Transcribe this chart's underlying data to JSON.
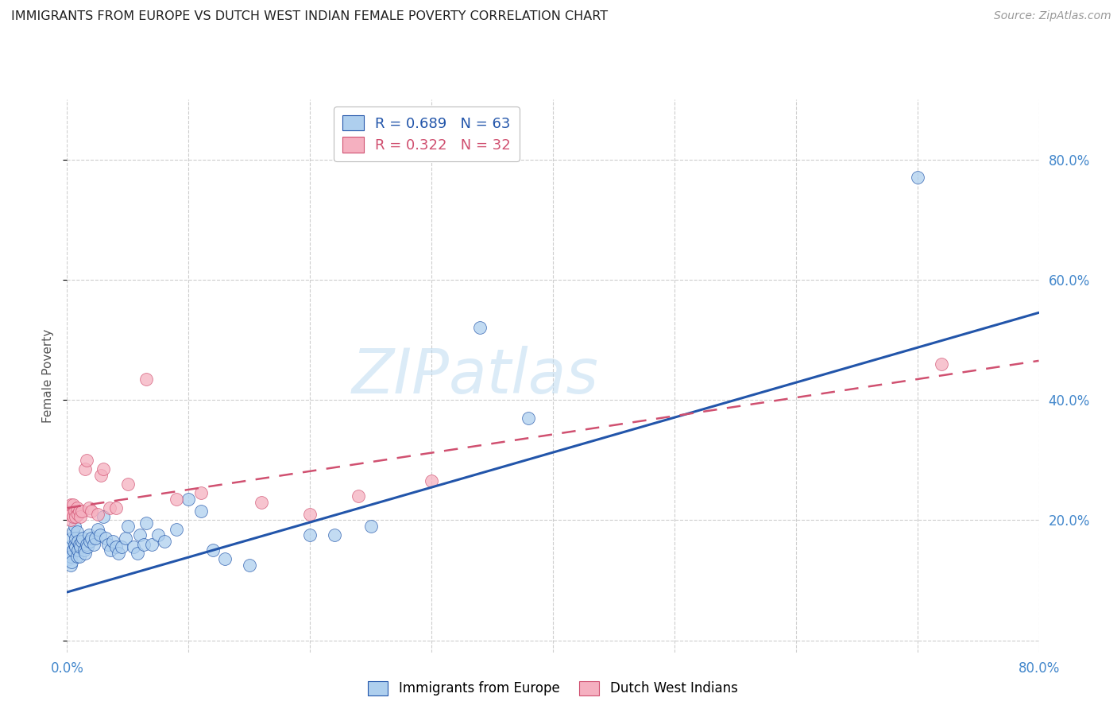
{
  "title": "IMMIGRANTS FROM EUROPE VS DUTCH WEST INDIAN FEMALE POVERTY CORRELATION CHART",
  "source": "Source: ZipAtlas.com",
  "xlabel_blue": "Immigrants from Europe",
  "xlabel_pink": "Dutch West Indians",
  "ylabel": "Female Poverty",
  "watermark": "ZIPatlas",
  "xlim": [
    0.0,
    0.8
  ],
  "ylim": [
    -0.02,
    0.9
  ],
  "xticks": [
    0.0,
    0.1,
    0.2,
    0.3,
    0.4,
    0.5,
    0.6,
    0.7,
    0.8
  ],
  "yticks": [
    0.0,
    0.2,
    0.4,
    0.6,
    0.8
  ],
  "blue_R": 0.689,
  "blue_N": 63,
  "pink_R": 0.322,
  "pink_N": 32,
  "blue_color": "#aecfee",
  "blue_line_color": "#2255aa",
  "pink_color": "#f5b0c0",
  "pink_line_color": "#d05070",
  "grid_color": "#c8c8c8",
  "title_color": "#222222",
  "axis_label_color": "#4488cc",
  "right_tick_color": "#4488cc",
  "blue_scatter": [
    [
      0.001,
      0.145
    ],
    [
      0.002,
      0.135
    ],
    [
      0.002,
      0.155
    ],
    [
      0.003,
      0.125
    ],
    [
      0.003,
      0.14
    ],
    [
      0.004,
      0.13
    ],
    [
      0.004,
      0.17
    ],
    [
      0.005,
      0.15
    ],
    [
      0.005,
      0.18
    ],
    [
      0.006,
      0.16
    ],
    [
      0.006,
      0.19
    ],
    [
      0.007,
      0.155
    ],
    [
      0.007,
      0.17
    ],
    [
      0.008,
      0.14
    ],
    [
      0.008,
      0.18
    ],
    [
      0.009,
      0.15
    ],
    [
      0.009,
      0.165
    ],
    [
      0.01,
      0.14
    ],
    [
      0.01,
      0.16
    ],
    [
      0.011,
      0.155
    ],
    [
      0.012,
      0.165
    ],
    [
      0.013,
      0.17
    ],
    [
      0.014,
      0.15
    ],
    [
      0.015,
      0.145
    ],
    [
      0.016,
      0.16
    ],
    [
      0.017,
      0.155
    ],
    [
      0.018,
      0.175
    ],
    [
      0.019,
      0.165
    ],
    [
      0.02,
      0.17
    ],
    [
      0.022,
      0.16
    ],
    [
      0.023,
      0.17
    ],
    [
      0.025,
      0.185
    ],
    [
      0.027,
      0.175
    ],
    [
      0.03,
      0.205
    ],
    [
      0.032,
      0.17
    ],
    [
      0.034,
      0.16
    ],
    [
      0.036,
      0.15
    ],
    [
      0.038,
      0.165
    ],
    [
      0.04,
      0.155
    ],
    [
      0.042,
      0.145
    ],
    [
      0.045,
      0.155
    ],
    [
      0.048,
      0.17
    ],
    [
      0.05,
      0.19
    ],
    [
      0.055,
      0.155
    ],
    [
      0.058,
      0.145
    ],
    [
      0.06,
      0.175
    ],
    [
      0.063,
      0.16
    ],
    [
      0.065,
      0.195
    ],
    [
      0.07,
      0.16
    ],
    [
      0.075,
      0.175
    ],
    [
      0.08,
      0.165
    ],
    [
      0.09,
      0.185
    ],
    [
      0.1,
      0.235
    ],
    [
      0.11,
      0.215
    ],
    [
      0.12,
      0.15
    ],
    [
      0.13,
      0.135
    ],
    [
      0.15,
      0.125
    ],
    [
      0.2,
      0.175
    ],
    [
      0.22,
      0.175
    ],
    [
      0.25,
      0.19
    ],
    [
      0.34,
      0.52
    ],
    [
      0.38,
      0.37
    ],
    [
      0.7,
      0.77
    ]
  ],
  "pink_scatter": [
    [
      0.001,
      0.21
    ],
    [
      0.002,
      0.215
    ],
    [
      0.003,
      0.2
    ],
    [
      0.003,
      0.225
    ],
    [
      0.004,
      0.21
    ],
    [
      0.005,
      0.205
    ],
    [
      0.005,
      0.225
    ],
    [
      0.006,
      0.215
    ],
    [
      0.007,
      0.205
    ],
    [
      0.008,
      0.22
    ],
    [
      0.009,
      0.21
    ],
    [
      0.01,
      0.215
    ],
    [
      0.011,
      0.205
    ],
    [
      0.012,
      0.215
    ],
    [
      0.015,
      0.285
    ],
    [
      0.016,
      0.3
    ],
    [
      0.018,
      0.22
    ],
    [
      0.02,
      0.215
    ],
    [
      0.025,
      0.21
    ],
    [
      0.028,
      0.275
    ],
    [
      0.03,
      0.285
    ],
    [
      0.035,
      0.22
    ],
    [
      0.04,
      0.22
    ],
    [
      0.05,
      0.26
    ],
    [
      0.065,
      0.435
    ],
    [
      0.09,
      0.235
    ],
    [
      0.11,
      0.245
    ],
    [
      0.16,
      0.23
    ],
    [
      0.2,
      0.21
    ],
    [
      0.24,
      0.24
    ],
    [
      0.3,
      0.265
    ],
    [
      0.72,
      0.46
    ]
  ],
  "blue_line_x": [
    0.0,
    0.8
  ],
  "blue_line_y": [
    0.08,
    0.545
  ],
  "pink_line_x": [
    0.0,
    0.8
  ],
  "pink_line_y": [
    0.22,
    0.465
  ],
  "background_color": "#ffffff"
}
